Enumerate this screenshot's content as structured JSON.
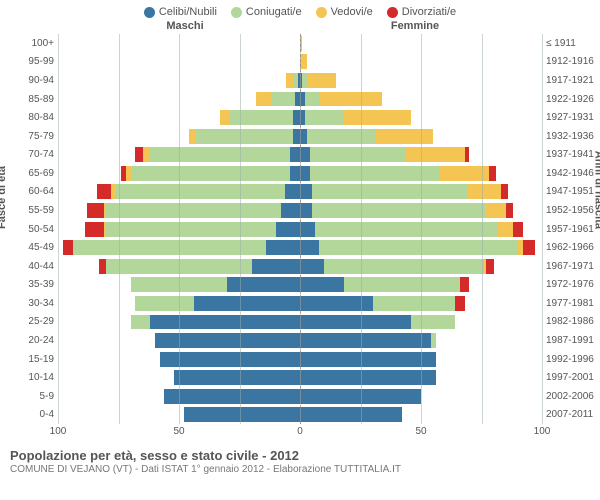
{
  "legend": [
    {
      "label": "Celibi/Nubili",
      "color": "#3b76a3"
    },
    {
      "label": "Coniugati/e",
      "color": "#b3d69b"
    },
    {
      "label": "Vedovi/e",
      "color": "#f4c552"
    },
    {
      "label": "Divorziati/e",
      "color": "#d42a2a"
    }
  ],
  "gender_left": "Maschi",
  "gender_right": "Femmine",
  "axis_left_title": "Fasce di età",
  "axis_right_title": "Anni di nascita",
  "xmax": 100,
  "xticks": [
    100,
    50,
    0,
    50,
    100
  ],
  "age_bands": [
    "100+",
    "95-99",
    "90-94",
    "85-89",
    "80-84",
    "75-79",
    "70-74",
    "65-69",
    "60-64",
    "55-59",
    "50-54",
    "45-49",
    "40-44",
    "35-39",
    "30-34",
    "25-29",
    "20-24",
    "15-19",
    "10-14",
    "5-9",
    "0-4"
  ],
  "birth_bands": [
    "≤ 1911",
    "1912-1916",
    "1917-1921",
    "1922-1926",
    "1927-1931",
    "1932-1936",
    "1937-1941",
    "1942-1946",
    "1947-1951",
    "1952-1956",
    "1957-1961",
    "1962-1966",
    "1967-1971",
    "1972-1976",
    "1977-1981",
    "1982-1986",
    "1987-1991",
    "1992-1996",
    "1997-2001",
    "2002-2006",
    "2007-2011"
  ],
  "rows": [
    {
      "m": {
        "celibi": 0,
        "coniugati": 0,
        "vedovi": 0,
        "divorziati": 0
      },
      "f": {
        "celibi": 0,
        "coniugati": 0,
        "vedovi": 1,
        "divorziati": 0
      }
    },
    {
      "m": {
        "celibi": 0,
        "coniugati": 0,
        "vedovi": 0,
        "divorziati": 0
      },
      "f": {
        "celibi": 0,
        "coniugati": 0,
        "vedovi": 3,
        "divorziati": 0
      }
    },
    {
      "m": {
        "celibi": 1,
        "coniugati": 2,
        "vedovi": 3,
        "divorziati": 0
      },
      "f": {
        "celibi": 1,
        "coniugati": 2,
        "vedovi": 12,
        "divorziati": 0
      }
    },
    {
      "m": {
        "celibi": 2,
        "coniugati": 10,
        "vedovi": 6,
        "divorziati": 0
      },
      "f": {
        "celibi": 2,
        "coniugati": 6,
        "vedovi": 26,
        "divorziati": 0
      }
    },
    {
      "m": {
        "celibi": 3,
        "coniugati": 26,
        "vedovi": 4,
        "divorziati": 0
      },
      "f": {
        "celibi": 2,
        "coniugati": 16,
        "vedovi": 28,
        "divorziati": 0
      }
    },
    {
      "m": {
        "celibi": 3,
        "coniugati": 40,
        "vedovi": 3,
        "divorziati": 0
      },
      "f": {
        "celibi": 3,
        "coniugati": 28,
        "vedovi": 24,
        "divorziati": 0
      }
    },
    {
      "m": {
        "celibi": 4,
        "coniugati": 58,
        "vedovi": 3,
        "divorziati": 3
      },
      "f": {
        "celibi": 4,
        "coniugati": 40,
        "vedovi": 24,
        "divorziati": 2
      }
    },
    {
      "m": {
        "celibi": 4,
        "coniugati": 66,
        "vedovi": 2,
        "divorziati": 2
      },
      "f": {
        "celibi": 4,
        "coniugati": 54,
        "vedovi": 20,
        "divorziati": 3
      }
    },
    {
      "m": {
        "celibi": 6,
        "coniugati": 70,
        "vedovi": 2,
        "divorziati": 6
      },
      "f": {
        "celibi": 5,
        "coniugati": 64,
        "vedovi": 14,
        "divorziati": 3
      }
    },
    {
      "m": {
        "celibi": 8,
        "coniugati": 72,
        "vedovi": 1,
        "divorziati": 7
      },
      "f": {
        "celibi": 5,
        "coniugati": 72,
        "vedovi": 8,
        "divorziati": 3
      }
    },
    {
      "m": {
        "celibi": 10,
        "coniugati": 70,
        "vedovi": 1,
        "divorziati": 8
      },
      "f": {
        "celibi": 6,
        "coniugati": 76,
        "vedovi": 6,
        "divorziati": 4
      }
    },
    {
      "m": {
        "celibi": 14,
        "coniugati": 80,
        "vedovi": 0,
        "divorziati": 4
      },
      "f": {
        "celibi": 8,
        "coniugati": 82,
        "vedovi": 2,
        "divorziati": 5
      }
    },
    {
      "m": {
        "celibi": 20,
        "coniugati": 60,
        "vedovi": 0,
        "divorziati": 3
      },
      "f": {
        "celibi": 10,
        "coniugati": 66,
        "vedovi": 1,
        "divorziati": 3
      }
    },
    {
      "m": {
        "celibi": 30,
        "coniugati": 40,
        "vedovi": 0,
        "divorziati": 0
      },
      "f": {
        "celibi": 18,
        "coniugati": 48,
        "vedovi": 0,
        "divorziati": 4
      }
    },
    {
      "m": {
        "celibi": 44,
        "coniugati": 24,
        "vedovi": 0,
        "divorziati": 0
      },
      "f": {
        "celibi": 30,
        "coniugati": 34,
        "vedovi": 0,
        "divorziati": 4
      }
    },
    {
      "m": {
        "celibi": 62,
        "coniugati": 8,
        "vedovi": 0,
        "divorziati": 0
      },
      "f": {
        "celibi": 46,
        "coniugati": 18,
        "vedovi": 0,
        "divorziati": 0
      }
    },
    {
      "m": {
        "celibi": 60,
        "coniugati": 0,
        "vedovi": 0,
        "divorziati": 0
      },
      "f": {
        "celibi": 54,
        "coniugati": 2,
        "vedovi": 0,
        "divorziati": 0
      }
    },
    {
      "m": {
        "celibi": 58,
        "coniugati": 0,
        "vedovi": 0,
        "divorziati": 0
      },
      "f": {
        "celibi": 56,
        "coniugati": 0,
        "vedovi": 0,
        "divorziati": 0
      }
    },
    {
      "m": {
        "celibi": 52,
        "coniugati": 0,
        "vedovi": 0,
        "divorziati": 0
      },
      "f": {
        "celibi": 56,
        "coniugati": 0,
        "vedovi": 0,
        "divorziati": 0
      }
    },
    {
      "m": {
        "celibi": 56,
        "coniugati": 0,
        "vedovi": 0,
        "divorziati": 0
      },
      "f": {
        "celibi": 50,
        "coniugati": 0,
        "vedovi": 0,
        "divorziati": 0
      }
    },
    {
      "m": {
        "celibi": 48,
        "coniugati": 0,
        "vedovi": 0,
        "divorziati": 0
      },
      "f": {
        "celibi": 42,
        "coniugati": 0,
        "vedovi": 0,
        "divorziati": 0
      }
    }
  ],
  "colors": {
    "celibi": "#3b76a3",
    "coniugati": "#b3d69b",
    "vedovi": "#f4c552",
    "divorziati": "#d42a2a",
    "grid": "#9aa",
    "text": "#555"
  },
  "footer_title": "Popolazione per età, sesso e stato civile - 2012",
  "footer_sub": "COMUNE DI VEJANO (VT) - Dati ISTAT 1° gennaio 2012 - Elaborazione TUTTITALIA.IT"
}
